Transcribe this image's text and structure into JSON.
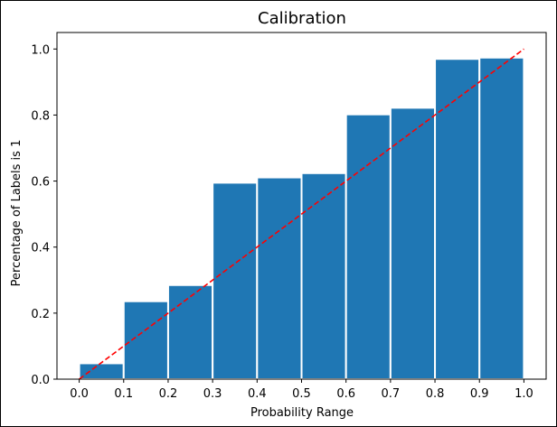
{
  "chart_data": {
    "type": "bar",
    "title": "Calibration",
    "xlabel": "Probability Range",
    "ylabel": "Percentage of Labels is 1",
    "xlim": [
      -0.05,
      1.05
    ],
    "ylim": [
      0.0,
      1.05
    ],
    "bin_edges": [
      0.0,
      0.1,
      0.2,
      0.3,
      0.4,
      0.5,
      0.6,
      0.7,
      0.8,
      0.9,
      1.0
    ],
    "values": [
      0.048,
      0.236,
      0.285,
      0.595,
      0.611,
      0.624,
      0.802,
      0.822,
      0.97,
      0.974
    ],
    "bar_color": "#1f77b4",
    "bar_edge_color": "#ffffff",
    "x_ticks": [
      0.0,
      0.1,
      0.2,
      0.3,
      0.4,
      0.5,
      0.6,
      0.7,
      0.8,
      0.9,
      1.0
    ],
    "x_tick_labels": [
      "0.0",
      "0.1",
      "0.2",
      "0.3",
      "0.4",
      "0.5",
      "0.6",
      "0.7",
      "0.8",
      "0.9",
      "1.0"
    ],
    "y_ticks": [
      0.0,
      0.2,
      0.4,
      0.6,
      0.8,
      1.0
    ],
    "y_tick_labels": [
      "0.0",
      "0.2",
      "0.4",
      "0.6",
      "0.8",
      "1.0"
    ],
    "reference_line": {
      "x": [
        0.0,
        1.0
      ],
      "y": [
        0.0,
        1.0
      ],
      "style": "dashed",
      "color": "#ff0000"
    },
    "grid": false
  }
}
